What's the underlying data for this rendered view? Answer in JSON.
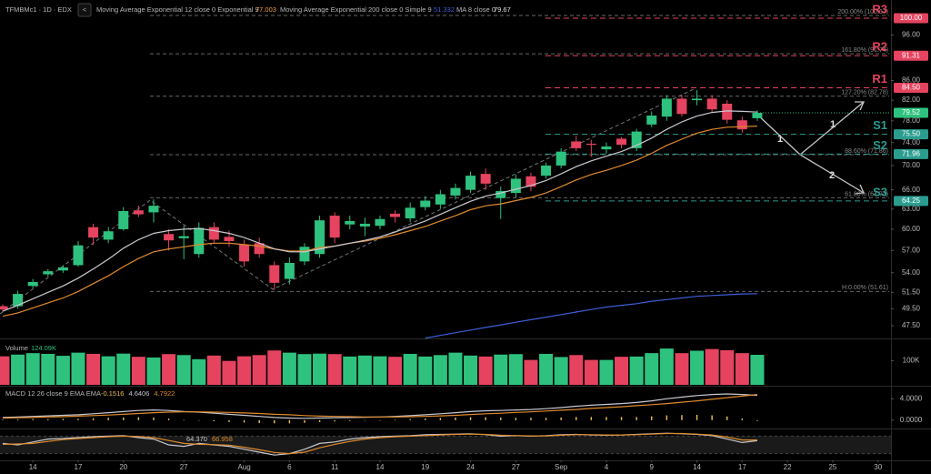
{
  "header": {
    "symbol": "TFMBMc1 · 1D · EDX",
    "back_button": "<",
    "indicators": [
      {
        "name": "Moving Average Exponential 12 close 0 Exponential 9",
        "value": "77.003",
        "color": "#f0a040"
      },
      {
        "name": "Moving Average Exponential 200 close 0 Simple 9",
        "value": "51.332",
        "color": "#3d5fd6"
      },
      {
        "name": "MA 8 close 0",
        "value": "79.67",
        "color": "#e0e0e0"
      }
    ]
  },
  "chart_data": [
    {
      "type": "candlestick",
      "log_scale": true,
      "up_color": "#2ec27e",
      "down_color": "#e5435f",
      "xlim": [
        -0.18,
        58.86
      ],
      "ylim": [
        46.06,
        104.5
      ],
      "open": [
        49.8,
        49.8,
        52.3,
        53.8,
        54.3,
        55,
        60.3,
        58.5,
        60,
        62.8,
        62.5,
        59.3,
        58.7,
        56.5,
        60.3,
        58.9,
        57.8,
        58,
        55,
        53.2,
        55.5,
        56.5,
        62,
        60.7,
        60.4,
        60.5,
        62.3,
        61.6,
        63.3,
        63.7,
        65.1,
        66,
        68.6,
        64.7,
        65.5,
        68.2,
        68.3,
        70,
        74.2,
        73.8,
        72.8,
        74.7,
        73,
        77.3,
        78.8,
        82.3,
        82,
        82.3,
        81.3,
        78.1,
        78.5
      ],
      "high": [
        50,
        51.7,
        53.2,
        54.5,
        55,
        58.3,
        60.8,
        60.3,
        63.3,
        63.5,
        64.5,
        60,
        60.5,
        61,
        61,
        59.8,
        58.5,
        58.8,
        55.5,
        56,
        58,
        62,
        62.5,
        62,
        61.7,
        62,
        62.8,
        64,
        65,
        66,
        67,
        69,
        69.5,
        66.5,
        68.5,
        68.8,
        70.5,
        73,
        75.2,
        74.5,
        74,
        75,
        76.5,
        79.8,
        83,
        83,
        84,
        83,
        82,
        78.8,
        80
      ],
      "low": [
        49.2,
        49.5,
        52,
        53.5,
        54,
        54.8,
        57.8,
        58,
        59.8,
        61.8,
        61,
        57,
        55.8,
        56,
        58,
        57.5,
        54.8,
        56,
        51.8,
        52.5,
        55,
        56,
        58,
        60,
        59,
        60,
        61,
        61,
        62.8,
        63,
        64.5,
        65.5,
        66,
        61.5,
        64.8,
        65.8,
        67.8,
        69.5,
        72.5,
        71.5,
        72,
        73,
        72.5,
        76.8,
        78,
        78.8,
        81,
        79.5,
        77.5,
        75.8,
        78
      ],
      "close": [
        49.4,
        51.3,
        52.8,
        54.2,
        54.7,
        57.7,
        58.8,
        59.7,
        62.7,
        62.2,
        63.5,
        58.4,
        59,
        60.2,
        58.5,
        58.3,
        55.5,
        56.5,
        52.7,
        55.3,
        57.5,
        61.3,
        58.8,
        61.2,
        60.8,
        61.5,
        61.8,
        63.2,
        64.3,
        65.3,
        66.3,
        68.3,
        67,
        65.8,
        67.8,
        66.5,
        70,
        72.4,
        73,
        73.6,
        73.3,
        73.6,
        76,
        79,
        82.3,
        79.3,
        82.3,
        80.2,
        78.2,
        76.4,
        79.52
      ],
      "series": [
        {
          "name": "EMA 12",
          "color": "#e08a2c",
          "values": [
            48.6,
            49.0,
            49.6,
            50.2,
            50.8,
            51.6,
            52.6,
            53.6,
            54.8,
            55.9,
            56.8,
            57.2,
            57.5,
            57.8,
            58.0,
            58.0,
            57.8,
            57.6,
            57.2,
            56.9,
            56.9,
            57.4,
            57.6,
            58.0,
            58.3,
            58.7,
            59.2,
            59.8,
            60.4,
            61.2,
            62.0,
            62.9,
            63.5,
            63.8,
            64.3,
            64.8,
            65.5,
            66.5,
            67.6,
            68.5,
            69.2,
            70.0,
            70.9,
            72.1,
            73.5,
            74.6,
            75.7,
            76.4,
            76.8,
            76.9,
            77.003
          ]
        },
        {
          "name": "EMA 200",
          "color": "#3d5fd6",
          "values": [
            null,
            null,
            null,
            null,
            null,
            null,
            null,
            null,
            null,
            null,
            null,
            null,
            null,
            null,
            null,
            null,
            null,
            null,
            null,
            null,
            null,
            null,
            null,
            null,
            null,
            null,
            null,
            null,
            46.1,
            46.4,
            46.7,
            47.0,
            47.3,
            47.6,
            47.9,
            48.2,
            48.5,
            48.8,
            49.1,
            49.4,
            49.7,
            49.9,
            50.1,
            50.4,
            50.6,
            50.8,
            51.0,
            51.1,
            51.2,
            51.3,
            51.332
          ]
        },
        {
          "name": "MA 8",
          "color": "#c8c8d0",
          "values": [
            49.2,
            49.9,
            50.7,
            51.5,
            52.3,
            53.3,
            54.5,
            55.8,
            57.3,
            58.5,
            59.4,
            59.8,
            60.0,
            60.1,
            59.8,
            59.4,
            58.8,
            58.0,
            57.2,
            56.8,
            56.8,
            57.2,
            57.6,
            58.0,
            58.4,
            58.9,
            59.6,
            60.4,
            61.2,
            62.2,
            63.2,
            64.2,
            65.0,
            65.5,
            66.1,
            66.7,
            67.5,
            68.6,
            69.8,
            70.8,
            71.6,
            72.4,
            73.5,
            74.8,
            76.4,
            77.8,
            78.9,
            79.6,
            79.9,
            79.8,
            79.67
          ]
        }
      ],
      "yticks": [
        {
          "value": 96,
          "label": "96.00"
        },
        {
          "value": 86,
          "label": "86.00"
        },
        {
          "value": 82,
          "label": "82.00"
        },
        {
          "value": 78,
          "label": "78.00"
        },
        {
          "value": 74,
          "label": "74.00"
        },
        {
          "value": 70,
          "label": "70.00"
        },
        {
          "value": 66,
          "label": "66.00"
        },
        {
          "value": 63,
          "label": "63.00"
        },
        {
          "value": 60,
          "label": "60.00"
        },
        {
          "value": 57,
          "label": "57.00"
        },
        {
          "value": 54,
          "label": "54.00"
        },
        {
          "value": 51.5,
          "label": "51.50"
        },
        {
          "value": 49.5,
          "label": "49.50"
        },
        {
          "value": 47.5,
          "label": "47.50"
        }
      ],
      "xticks": [
        {
          "value": 2,
          "label": "14"
        },
        {
          "value": 5,
          "label": "17"
        },
        {
          "value": 8,
          "label": "20"
        },
        {
          "value": 12,
          "label": "27"
        },
        {
          "value": 16,
          "label": "Aug"
        },
        {
          "value": 19,
          "label": "6"
        },
        {
          "value": 22,
          "label": "11"
        },
        {
          "value": 25,
          "label": "14"
        },
        {
          "value": 28,
          "label": "19"
        },
        {
          "value": 31,
          "label": "24"
        },
        {
          "value": 34,
          "label": "27"
        },
        {
          "value": 37,
          "label": "Sep"
        },
        {
          "value": 40,
          "label": "4"
        },
        {
          "value": 43,
          "label": "9"
        },
        {
          "value": 46,
          "label": "14"
        },
        {
          "value": 49,
          "label": "17"
        },
        {
          "value": 52,
          "label": "22"
        },
        {
          "value": 55,
          "label": "25"
        },
        {
          "value": 58,
          "label": "30"
        }
      ],
      "levels": [
        {
          "name": "R3",
          "value": 100,
          "label": "100.00",
          "color": "#e5435f"
        },
        {
          "name": "R2",
          "value": 91.31,
          "label": "91.31",
          "color": "#e5435f"
        },
        {
          "name": "R1",
          "value": 84.5,
          "label": "84.50",
          "color": "#e5435f"
        },
        {
          "name": "S1",
          "value": 75.5,
          "label": "75.50",
          "color": "#2a9d8f"
        },
        {
          "name": "S2",
          "value": 71.96,
          "label": "71.96",
          "color": "#2a9d8f"
        },
        {
          "name": "S3",
          "value": 64.25,
          "label": "64.25",
          "color": "#2a9d8f"
        }
      ],
      "fib_levels": [
        {
          "value": 100.67,
          "label": "200.00% (100.67)"
        },
        {
          "value": 91.74,
          "label": "161.80% (91.74)"
        },
        {
          "value": 82.78,
          "label": "127.20% (82.78)"
        },
        {
          "value": 71.86,
          "label": "88.60% (71.86)"
        },
        {
          "value": 64.74,
          "label": "61.80% (64.74)"
        },
        {
          "value": 51.61,
          "label": "H:0.00% (51.61)"
        }
      ],
      "annotations": [
        "1",
        "1",
        "2"
      ]
    },
    {
      "type": "bar",
      "title": "Volume",
      "legend_value": "124.09K",
      "ylim": [
        0,
        188000
      ],
      "yticks": [
        {
          "value": 100000,
          "label": "100K"
        }
      ],
      "values": [
        118000,
        125000,
        131000,
        128000,
        120000,
        133000,
        128000,
        118000,
        129000,
        116000,
        113000,
        127000,
        123000,
        106000,
        121000,
        99000,
        118000,
        123000,
        142000,
        133000,
        127000,
        129000,
        127000,
        117000,
        121000,
        118000,
        116000,
        128000,
        117000,
        123000,
        133000,
        121000,
        117000,
        125000,
        127000,
        103000,
        128000,
        115000,
        123000,
        103000,
        103000,
        116000,
        117000,
        131000,
        150000,
        131000,
        141000,
        148000,
        143000,
        131000,
        124090
      ]
    },
    {
      "type": "macd",
      "title": "MACD 12 26 close 9 EMA EMA",
      "legend_values": [
        "-0.1516",
        "4.6406",
        "4.7922"
      ],
      "legend_colors": [
        "#f0c050",
        "#c8c8d0",
        "#e08a2c"
      ],
      "ylim": [
        -1.39,
        6.26
      ],
      "yticks": [
        {
          "value": 4,
          "label": "4.0000"
        },
        {
          "value": 0,
          "label": "0.0000"
        }
      ],
      "histogram_color": "#f0c050",
      "histogram": [
        0.1,
        0.15,
        0.2,
        0.2,
        0.25,
        0.25,
        0.35,
        0.45,
        0.5,
        0.55,
        0.5,
        0.3,
        0.05,
        -0.05,
        -0.2,
        -0.35,
        -0.45,
        -0.55,
        -0.6,
        -0.6,
        -0.5,
        -0.35,
        -0.25,
        -0.15,
        -0.05,
        0,
        0.1,
        0.2,
        0.3,
        0.4,
        0.5,
        0.55,
        0.55,
        0.5,
        0.45,
        0.45,
        0.45,
        0.5,
        0.6,
        0.6,
        0.6,
        0.6,
        0.6,
        0.7,
        0.9,
        0.95,
        1.0,
        0.9,
        0.7,
        0.3,
        -0.1516
      ],
      "series": [
        {
          "name": "MACD",
          "color": "#c8c8d0",
          "values": [
            0.5,
            0.6,
            0.7,
            0.8,
            0.9,
            1.0,
            1.2,
            1.4,
            1.6,
            1.8,
            1.9,
            1.8,
            1.6,
            1.5,
            1.3,
            1.1,
            0.9,
            0.7,
            0.5,
            0.4,
            0.35,
            0.4,
            0.45,
            0.5,
            0.55,
            0.6,
            0.7,
            0.85,
            1.0,
            1.2,
            1.4,
            1.6,
            1.75,
            1.8,
            1.9,
            2.0,
            2.15,
            2.35,
            2.6,
            2.8,
            2.95,
            3.1,
            3.3,
            3.6,
            4.0,
            4.3,
            4.6,
            4.8,
            4.9,
            4.8,
            4.6406
          ]
        },
        {
          "name": "Signal",
          "color": "#e08a2c",
          "values": [
            0.4,
            0.45,
            0.5,
            0.6,
            0.65,
            0.75,
            0.85,
            0.95,
            1.1,
            1.25,
            1.4,
            1.5,
            1.55,
            1.55,
            1.5,
            1.45,
            1.35,
            1.25,
            1.1,
            1.0,
            0.85,
            0.75,
            0.7,
            0.65,
            0.6,
            0.6,
            0.6,
            0.65,
            0.7,
            0.8,
            0.9,
            1.05,
            1.2,
            1.3,
            1.45,
            1.55,
            1.7,
            1.85,
            2.0,
            2.2,
            2.35,
            2.5,
            2.7,
            2.9,
            3.1,
            3.35,
            3.6,
            3.9,
            4.2,
            4.5,
            4.7922
          ]
        }
      ]
    },
    {
      "type": "line",
      "title": "Stochastic Slow 14 3 3 Exponential",
      "legend_values": [
        "64.370",
        "66.958"
      ],
      "legend_colors": [
        "#c8c8d0",
        "#e08a2c"
      ],
      "ylim": [
        0,
        100
      ],
      "band": [
        20,
        80
      ],
      "series": [
        {
          "name": "%K",
          "color": "#c8c8d0",
          "values": [
            55,
            50,
            60,
            70,
            72,
            75,
            78,
            80,
            82,
            75,
            70,
            50,
            45,
            55,
            50,
            45,
            35,
            25,
            15,
            20,
            35,
            55,
            60,
            70,
            75,
            78,
            80,
            82,
            85,
            86,
            87,
            88,
            85,
            80,
            82,
            80,
            82,
            85,
            86,
            84,
            83,
            84,
            86,
            88,
            90,
            88,
            86,
            82,
            70,
            58,
            64.37
          ]
        },
        {
          "name": "%D",
          "color": "#e08a2c",
          "values": [
            52,
            53,
            55,
            62,
            68,
            72,
            75,
            78,
            80,
            79,
            75,
            65,
            55,
            52,
            51,
            49,
            42,
            33,
            24,
            20,
            25,
            40,
            52,
            62,
            70,
            75,
            78,
            80,
            82,
            84,
            86,
            87,
            86,
            83,
            82,
            81,
            81,
            83,
            85,
            85,
            84,
            84,
            85,
            87,
            89,
            89,
            87,
            84,
            77,
            67,
            66.958
          ]
        }
      ]
    }
  ]
}
